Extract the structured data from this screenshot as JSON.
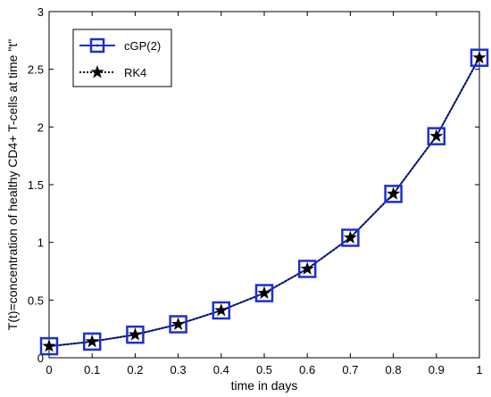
{
  "chart_data": {
    "type": "line",
    "xlabel": "time in days",
    "ylabel": "T(t)=concentration of healthy CD4+ T-cells at time \"t\"",
    "xlim": [
      0,
      1
    ],
    "ylim": [
      0,
      3
    ],
    "xticks": [
      "0",
      "0.1",
      "0.2",
      "0.3",
      "0.4",
      "0.5",
      "0.6",
      "0.7",
      "0.8",
      "0.9",
      "1"
    ],
    "yticks": [
      "0",
      "0.5",
      "1",
      "1.5",
      "2",
      "2.5",
      "3"
    ],
    "grid": false,
    "legend_position": "top-left",
    "x": [
      0,
      0.1,
      0.2,
      0.3,
      0.4,
      0.5,
      0.6,
      0.7,
      0.8,
      0.9,
      1.0
    ],
    "series": [
      {
        "name": "cGP(2)",
        "color": "#1f2fcc",
        "marker": "square",
        "line": "solid",
        "values": [
          0.1,
          0.14,
          0.2,
          0.29,
          0.41,
          0.56,
          0.77,
          1.04,
          1.42,
          1.92,
          2.6
        ]
      },
      {
        "name": "RK4",
        "color": "#000000",
        "marker": "star",
        "line": "dotted",
        "values": [
          0.1,
          0.14,
          0.2,
          0.29,
          0.41,
          0.56,
          0.77,
          1.04,
          1.42,
          1.92,
          2.6
        ]
      }
    ]
  }
}
